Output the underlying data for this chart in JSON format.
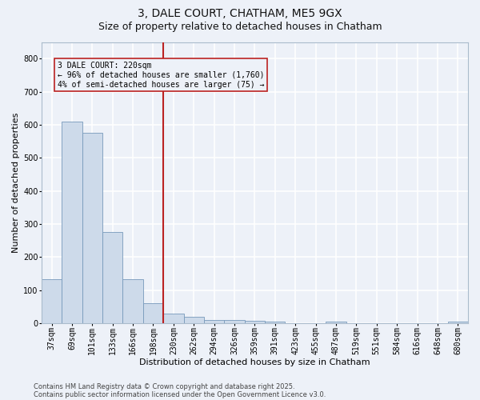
{
  "title1": "3, DALE COURT, CHATHAM, ME5 9GX",
  "title2": "Size of property relative to detached houses in Chatham",
  "xlabel": "Distribution of detached houses by size in Chatham",
  "ylabel": "Number of detached properties",
  "footer1": "Contains HM Land Registry data © Crown copyright and database right 2025.",
  "footer2": "Contains public sector information licensed under the Open Government Licence v3.0.",
  "bar_labels": [
    "37sqm",
    "69sqm",
    "101sqm",
    "133sqm",
    "166sqm",
    "198sqm",
    "230sqm",
    "262sqm",
    "294sqm",
    "326sqm",
    "359sqm",
    "391sqm",
    "423sqm",
    "455sqm",
    "487sqm",
    "519sqm",
    "551sqm",
    "584sqm",
    "616sqm",
    "648sqm",
    "680sqm"
  ],
  "bar_values": [
    133,
    610,
    575,
    275,
    133,
    60,
    28,
    18,
    10,
    10,
    8,
    5,
    0,
    0,
    5,
    0,
    0,
    0,
    0,
    0,
    5
  ],
  "bar_color": "#cddaea",
  "bar_edge_color": "#7799bb",
  "bg_color": "#edf1f8",
  "grid_color": "#ffffff",
  "vline_color": "#bb2222",
  "annotation_text": "3 DALE COURT: 220sqm\n← 96% of detached houses are smaller (1,760)\n4% of semi-detached houses are larger (75) →",
  "annotation_box_color": "#bb2222",
  "annotation_text_color": "#000000",
  "ylim": [
    0,
    850
  ],
  "yticks": [
    0,
    100,
    200,
    300,
    400,
    500,
    600,
    700,
    800
  ],
  "title_fontsize": 10,
  "subtitle_fontsize": 9,
  "ylabel_fontsize": 8,
  "xlabel_fontsize": 8,
  "tick_fontsize": 7,
  "annotation_fontsize": 7,
  "footer_fontsize": 6
}
